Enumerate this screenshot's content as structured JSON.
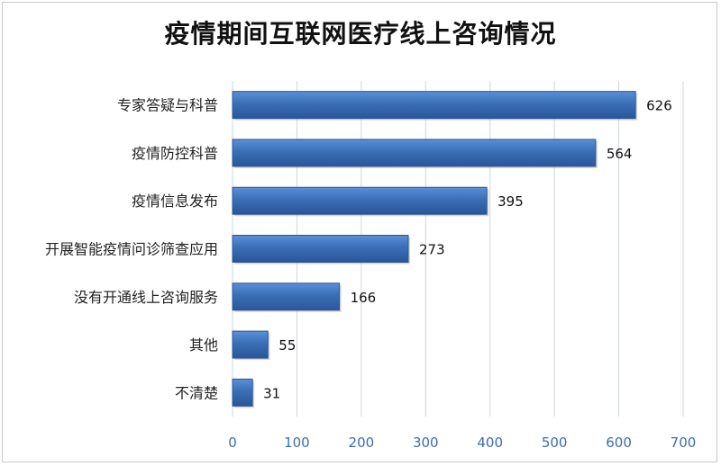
{
  "chart_data": {
    "type": "bar",
    "orientation": "horizontal",
    "title": "疫情期间互联网医疗线上咨询情况",
    "categories": [
      "专家答疑与科普",
      "疫情防控科普",
      "疫情信息发布",
      "开展智能疫情问诊筛查应用",
      "没有开通线上咨询服务",
      "其他",
      "不清楚"
    ],
    "values": [
      626,
      564,
      395,
      273,
      166,
      55,
      31
    ],
    "xlim": [
      0,
      700
    ],
    "xticks": [
      0,
      100,
      200,
      300,
      400,
      500,
      600,
      700
    ],
    "xlabel": "",
    "ylabel": "",
    "grid": true,
    "bar_color": "#3a6fb8",
    "bar_edge_color": "#2c5596"
  }
}
